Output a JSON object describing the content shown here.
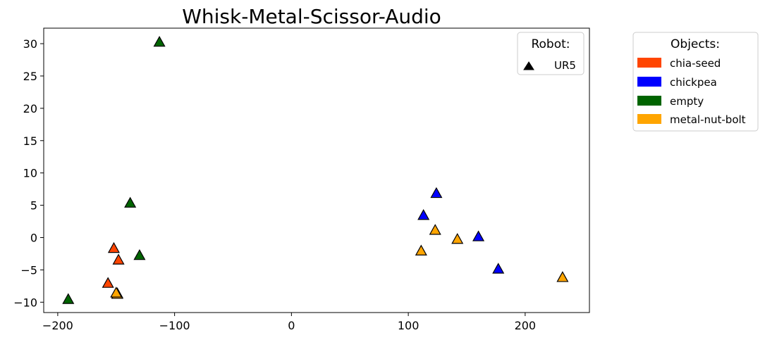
{
  "chart_data": {
    "type": "scatter",
    "title": "Whisk-Metal-Scissor-Audio",
    "xlabel": "",
    "ylabel": "",
    "xlim": [
      -212,
      255
    ],
    "ylim": [
      -11.6,
      32.4
    ],
    "xticks": [
      -200,
      -100,
      0,
      100,
      200
    ],
    "yticks": [
      -10,
      -5,
      0,
      5,
      10,
      15,
      20,
      25,
      30
    ],
    "grid": false,
    "marker": "triangle-up",
    "robot_legend": {
      "title": "Robot:",
      "placement": "top-right",
      "entries": [
        {
          "label": "UR5",
          "marker": "triangle-up",
          "color": "#000000"
        }
      ]
    },
    "objects_legend": {
      "title": "Objects:",
      "placement": "outside-right",
      "entries": [
        {
          "label": "chia-seed",
          "color": "#FF4500"
        },
        {
          "label": "chickpea",
          "color": "#0000FF"
        },
        {
          "label": "empty",
          "color": "#006400"
        },
        {
          "label": "metal-nut-bolt",
          "color": "#FFA500"
        }
      ]
    },
    "series": [
      {
        "name": "chia-seed",
        "color": "#FF4500",
        "points": [
          [
            -152,
            -1.7
          ],
          [
            -148,
            -3.5
          ],
          [
            -157,
            -7.1
          ],
          [
            -149,
            -8.7
          ]
        ]
      },
      {
        "name": "chickpea",
        "color": "#0000FF",
        "points": [
          [
            124,
            6.8
          ],
          [
            113,
            3.4
          ],
          [
            160,
            0.1
          ],
          [
            177,
            -4.9
          ]
        ]
      },
      {
        "name": "empty",
        "color": "#006400",
        "points": [
          [
            -113,
            30.2
          ],
          [
            -138,
            5.3
          ],
          [
            -130,
            -2.8
          ],
          [
            -191,
            -9.6
          ]
        ]
      },
      {
        "name": "metal-nut-bolt",
        "color": "#FFA500",
        "points": [
          [
            -149,
            -8.8
          ],
          [
            -150,
            -8.6
          ],
          [
            123,
            1.1
          ],
          [
            142,
            -0.3
          ],
          [
            111,
            -2.1
          ],
          [
            232,
            -6.2
          ]
        ]
      }
    ]
  }
}
